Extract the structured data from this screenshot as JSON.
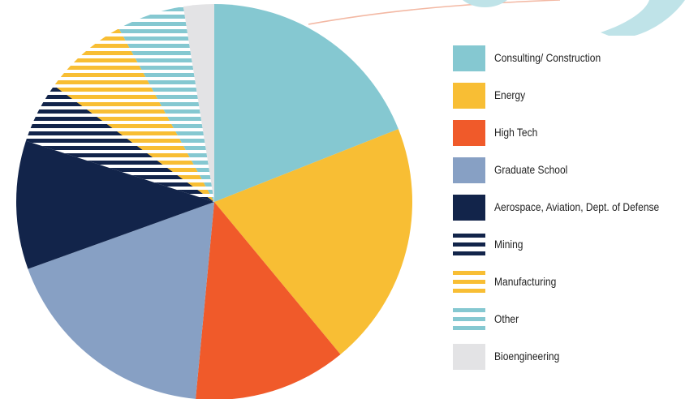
{
  "chart_data": {
    "type": "pie",
    "slices": [
      {
        "label": "Consulting/ Construction",
        "value": 19.0,
        "color": "#85c8d1",
        "pattern": "solid"
      },
      {
        "label": "Energy",
        "value": 20.0,
        "color": "#f8be34",
        "pattern": "solid"
      },
      {
        "label": "High Tech",
        "value": 12.5,
        "color": "#f05a2a",
        "pattern": "solid"
      },
      {
        "label": "Graduate School",
        "value": 18.0,
        "color": "#87a0c4",
        "pattern": "solid"
      },
      {
        "label": "Aerospace, Aviation, Dept. of Defense",
        "value": 10.5,
        "color": "#12244a",
        "pattern": "solid"
      },
      {
        "label": "Mining",
        "value": 5.0,
        "color": "#12244a",
        "pattern": "stripes"
      },
      {
        "label": "Manufacturing",
        "value": 7.0,
        "color": "#f8be34",
        "pattern": "stripes"
      },
      {
        "label": "Other",
        "value": 5.5,
        "color": "#85c8d1",
        "pattern": "stripes"
      },
      {
        "label": "Bioengineering",
        "value": 2.5,
        "color": "#e3e3e5",
        "pattern": "solid"
      }
    ],
    "legend_position": "right"
  },
  "legend": {
    "items": [
      "Consulting/ Construction",
      "Energy",
      "High Tech",
      "Graduate School",
      "Aerospace, Aviation, Dept. of Defense",
      "Mining",
      "Manufacturing",
      "Other",
      "Bioengineering"
    ]
  }
}
